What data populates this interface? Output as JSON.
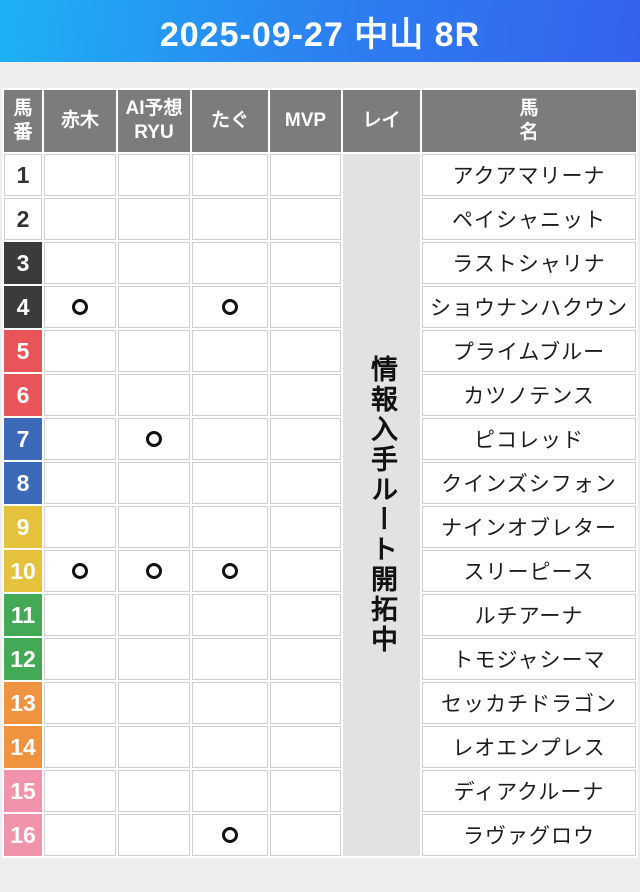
{
  "header": {
    "title": "2025-09-27 中山 8R"
  },
  "colors": {
    "banner_gradient_start": "#1db1f4",
    "banner_gradient_end": "#3462ee",
    "header_cell_bg": "#7c7c7c",
    "header_cell_text": "#ffffff",
    "rei_cell_bg": "#e2e2e2",
    "grid_line": "#cfcfcf",
    "page_bg": "#efeeee",
    "mark_color": "#111111"
  },
  "table": {
    "columns": [
      {
        "key": "num",
        "label": "馬番",
        "label_lines": [
          "馬",
          "番"
        ]
      },
      {
        "key": "akagi",
        "label": "赤木",
        "label_lines": [
          "赤木"
        ]
      },
      {
        "key": "ai_ryu",
        "label": "AI予想RYU",
        "label_lines": [
          "AI予想",
          "RYU"
        ]
      },
      {
        "key": "tagu",
        "label": "たぐ",
        "label_lines": [
          "たぐ"
        ]
      },
      {
        "key": "mvp",
        "label": "MVP",
        "label_lines": [
          "MVP"
        ]
      },
      {
        "key": "rei",
        "label": "レイ",
        "label_lines": [
          "レイ"
        ]
      },
      {
        "key": "name",
        "label": "馬名",
        "label_lines": [
          "馬",
          "名"
        ]
      }
    ],
    "predictor_keys": [
      "akagi",
      "ai_ryu",
      "tagu",
      "mvp"
    ],
    "mark_glyph": "〇",
    "rei_notice": "情報入手ルート開拓中",
    "rows": [
      {
        "num": 1,
        "name": "アクアマリーナ",
        "frame": {
          "bg": "#ffffff",
          "fg": "#333333"
        },
        "marks": []
      },
      {
        "num": 2,
        "name": "ペイシャニット",
        "frame": {
          "bg": "#ffffff",
          "fg": "#333333"
        },
        "marks": []
      },
      {
        "num": 3,
        "name": "ラストシャリナ",
        "frame": {
          "bg": "#3b3b3b",
          "fg": "#ffffff"
        },
        "marks": []
      },
      {
        "num": 4,
        "name": "ショウナンハクウン",
        "frame": {
          "bg": "#3b3b3b",
          "fg": "#ffffff"
        },
        "marks": [
          "akagi",
          "tagu"
        ]
      },
      {
        "num": 5,
        "name": "プライムブルー",
        "frame": {
          "bg": "#e85459",
          "fg": "#ffffff"
        },
        "marks": []
      },
      {
        "num": 6,
        "name": "カツノテンス",
        "frame": {
          "bg": "#e85459",
          "fg": "#ffffff"
        },
        "marks": []
      },
      {
        "num": 7,
        "name": "ピコレッド",
        "frame": {
          "bg": "#3d6ab8",
          "fg": "#ffffff"
        },
        "marks": [
          "ai_ryu"
        ]
      },
      {
        "num": 8,
        "name": "クインズシフォン",
        "frame": {
          "bg": "#3d6ab8",
          "fg": "#ffffff"
        },
        "marks": []
      },
      {
        "num": 9,
        "name": "ナインオブレター",
        "frame": {
          "bg": "#e5c23c",
          "fg": "#ffffff"
        },
        "marks": []
      },
      {
        "num": 10,
        "name": "スリーピース",
        "frame": {
          "bg": "#e5c23c",
          "fg": "#ffffff"
        },
        "marks": [
          "akagi",
          "ai_ryu",
          "tagu"
        ]
      },
      {
        "num": 11,
        "name": "ルチアーナ",
        "frame": {
          "bg": "#43a956",
          "fg": "#ffffff"
        },
        "marks": []
      },
      {
        "num": 12,
        "name": "トモジャシーマ",
        "frame": {
          "bg": "#43a956",
          "fg": "#ffffff"
        },
        "marks": []
      },
      {
        "num": 13,
        "name": "セッカチドラゴン",
        "frame": {
          "bg": "#ef9340",
          "fg": "#ffffff"
        },
        "marks": []
      },
      {
        "num": 14,
        "name": "レオエンプレス",
        "frame": {
          "bg": "#ef9340",
          "fg": "#ffffff"
        },
        "marks": []
      },
      {
        "num": 15,
        "name": "ディアクルーナ",
        "frame": {
          "bg": "#f193aa",
          "fg": "#ffffff"
        },
        "marks": []
      },
      {
        "num": 16,
        "name": "ラヴァグロウ",
        "frame": {
          "bg": "#f193aa",
          "fg": "#ffffff"
        },
        "marks": [
          "tagu"
        ]
      }
    ]
  }
}
